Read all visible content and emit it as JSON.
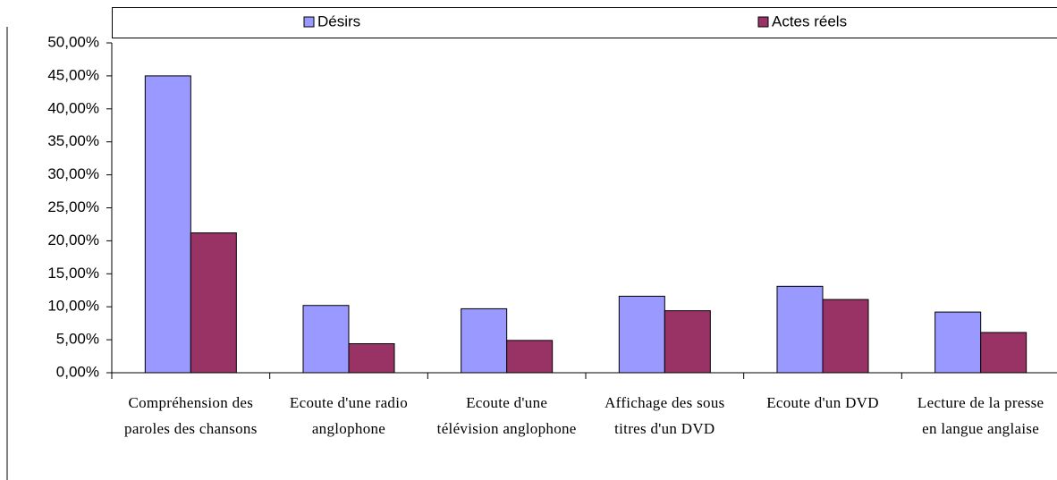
{
  "chart_data": {
    "type": "bar",
    "categories": [
      "Compréhension des paroles des chansons",
      "Ecoute d'une radio anglophone",
      "Ecoute d'une télévision anglophone",
      "Affichage des sous titres d'un DVD",
      "Ecoute d'un DVD",
      "Lecture de la presse en langue anglaise"
    ],
    "series": [
      {
        "name": "Désirs",
        "color": "#9999ff",
        "values": [
          45,
          10.2,
          9.7,
          11.6,
          13.1,
          9.2
        ]
      },
      {
        "name": "Actes réels",
        "color": "#993366",
        "values": [
          21.2,
          4.4,
          4.9,
          9.4,
          11.1,
          6.1
        ]
      }
    ],
    "ylim": [
      0,
      50
    ],
    "yticks": [
      {
        "value": 0,
        "label": "0,00%"
      },
      {
        "value": 5,
        "label": "5,00%"
      },
      {
        "value": 10,
        "label": "10,00%"
      },
      {
        "value": 15,
        "label": "15,00%"
      },
      {
        "value": 20,
        "label": "20,00%"
      },
      {
        "value": 25,
        "label": "25,00%"
      },
      {
        "value": 30,
        "label": "30,00%"
      },
      {
        "value": 35,
        "label": "35,00%"
      },
      {
        "value": 40,
        "label": "40,00%"
      },
      {
        "value": 45,
        "label": "45,00%"
      },
      {
        "value": 50,
        "label": "50,00%"
      }
    ],
    "legend": "top"
  }
}
